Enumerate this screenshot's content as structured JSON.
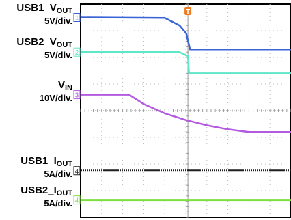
{
  "chart_data": {
    "type": "line",
    "title": "",
    "xlabel": "",
    "ylabel": "",
    "grid": true,
    "legend": "left",
    "colors": {
      "usb1_vout": "#3a63d8",
      "usb2_vout": "#5ee6c8",
      "vin": "#b35ae0",
      "usb1_iout": "#1e1e1e",
      "usb2_iout": "#7ee040",
      "trigger": "#f07a1e"
    },
    "x": [
      0,
      1,
      2,
      3,
      4,
      5,
      6,
      7,
      8,
      9,
      10
    ],
    "x_units": "div",
    "xlim": [
      0,
      10
    ],
    "ylim": [
      0,
      8
    ],
    "y_units": "div",
    "trigger_marker": {
      "label": "T",
      "x_div": 5.1
    },
    "series": [
      {
        "key": "usb1_vout",
        "name": "USB1_VOUT",
        "name_main": "USB1_V",
        "name_sub": "OUT",
        "scale": "5V/div.",
        "channel": "1",
        "x_div": [
          0,
          4.0,
          4.7,
          5.02,
          5.2,
          10
        ],
        "y_div": [
          7.5,
          7.48,
          7.2,
          6.9,
          6.3,
          6.3
        ]
      },
      {
        "key": "usb2_vout",
        "name": "USB2_VOUT",
        "name_main": "USB2_V",
        "name_sub": "OUT",
        "scale": "5V/div.",
        "channel": "2",
        "x_div": [
          0,
          4.7,
          5.1,
          5.15,
          10
        ],
        "y_div": [
          6.2,
          6.2,
          6.05,
          5.4,
          5.4
        ]
      },
      {
        "key": "vin",
        "name": "VIN",
        "name_main": "V",
        "name_sub": "IN",
        "scale": "10V/div.",
        "channel": "3",
        "x_div": [
          0,
          2.3,
          3.0,
          4.0,
          5.0,
          6.0,
          7.0,
          8.0,
          10
        ],
        "y_div": [
          4.6,
          4.6,
          4.25,
          3.9,
          3.65,
          3.45,
          3.3,
          3.2,
          3.2
        ]
      },
      {
        "key": "usb1_iout",
        "name": "USB1_IOUT",
        "name_main": "USB1_I",
        "name_sub": "OUT",
        "scale": "5A/div.",
        "channel": "4",
        "x_div": [
          0,
          10
        ],
        "y_div": [
          1.75,
          1.75
        ]
      },
      {
        "key": "usb2_iout",
        "name": "USB2_IOUT",
        "name_main": "USB2_I",
        "name_sub": "OUT",
        "scale": "5A/div.",
        "channel": "4",
        "x_div": [
          0,
          10
        ],
        "y_div": [
          0.65,
          0.65
        ]
      }
    ]
  }
}
